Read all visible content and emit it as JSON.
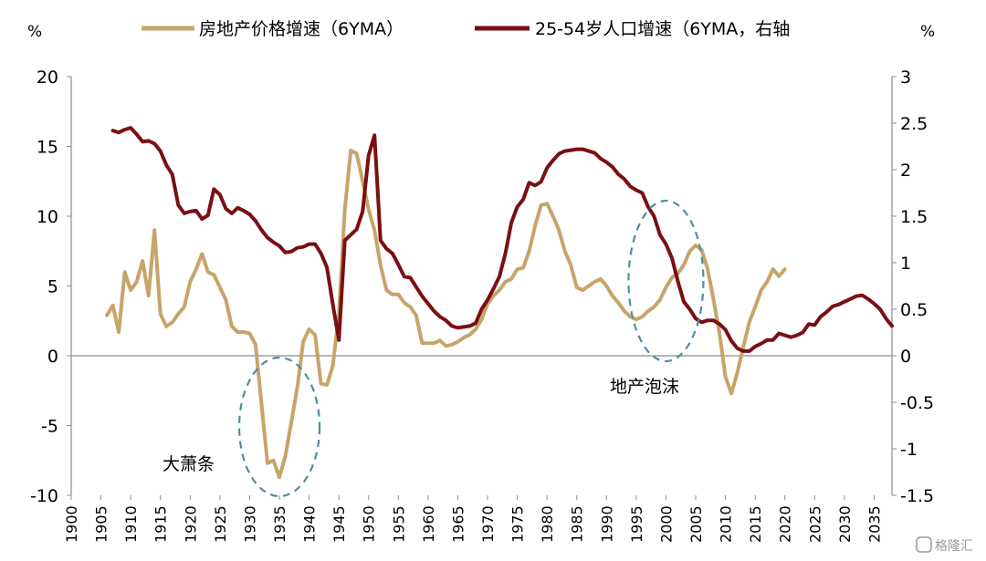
{
  "chart_data": {
    "type": "line",
    "left_unit": "%",
    "right_unit": "%",
    "x_ticks": [
      1900,
      1905,
      1910,
      1915,
      1920,
      1925,
      1930,
      1935,
      1940,
      1945,
      1950,
      1955,
      1960,
      1965,
      1970,
      1975,
      1980,
      1985,
      1990,
      1995,
      2000,
      2005,
      2010,
      2015,
      2020,
      2025,
      2030,
      2035
    ],
    "xlim": [
      1900,
      2038
    ],
    "ylim_left": [
      -10,
      20
    ],
    "ylim_right": [
      -1.5,
      3
    ],
    "y_ticks_left": [
      -10,
      -5,
      0,
      5,
      10,
      15,
      20
    ],
    "y_ticks_right": [
      -1.5,
      -1,
      -0.5,
      0,
      0.5,
      1,
      1.5,
      2,
      2.5,
      3
    ],
    "grid": false,
    "legend_position": "top",
    "series": [
      {
        "name": "房地产价格增速（6YMA）",
        "color": "#C8A46A",
        "axis": "left",
        "points": [
          [
            1906,
            2.9
          ],
          [
            1907,
            3.6
          ],
          [
            1908,
            1.7
          ],
          [
            1909,
            6.0
          ],
          [
            1910,
            4.7
          ],
          [
            1911,
            5.3
          ],
          [
            1912,
            6.8
          ],
          [
            1913,
            4.3
          ],
          [
            1914,
            9.0
          ],
          [
            1915,
            3.0
          ],
          [
            1916,
            2.1
          ],
          [
            1917,
            2.4
          ],
          [
            1918,
            3.0
          ],
          [
            1919,
            3.5
          ],
          [
            1920,
            5.3
          ],
          [
            1921,
            6.2
          ],
          [
            1922,
            7.3
          ],
          [
            1923,
            6.0
          ],
          [
            1924,
            5.8
          ],
          [
            1925,
            4.9
          ],
          [
            1926,
            4.0
          ],
          [
            1927,
            2.1
          ],
          [
            1928,
            1.7
          ],
          [
            1929,
            1.7
          ],
          [
            1930,
            1.6
          ],
          [
            1931,
            0.8
          ],
          [
            1932,
            -3.5
          ],
          [
            1933,
            -7.7
          ],
          [
            1934,
            -7.5
          ],
          [
            1935,
            -8.7
          ],
          [
            1936,
            -7.2
          ],
          [
            1937,
            -4.8
          ],
          [
            1938,
            -2.3
          ],
          [
            1939,
            1.0
          ],
          [
            1940,
            1.9
          ],
          [
            1941,
            1.5
          ],
          [
            1942,
            -2.0
          ],
          [
            1943,
            -2.1
          ],
          [
            1944,
            -0.7
          ],
          [
            1945,
            3.0
          ],
          [
            1946,
            10.5
          ],
          [
            1947,
            14.7
          ],
          [
            1948,
            14.5
          ],
          [
            1949,
            12.5
          ],
          [
            1950,
            10.5
          ],
          [
            1951,
            9.0
          ],
          [
            1952,
            6.5
          ],
          [
            1953,
            4.7
          ],
          [
            1954,
            4.4
          ],
          [
            1955,
            4.4
          ],
          [
            1956,
            3.8
          ],
          [
            1957,
            3.5
          ],
          [
            1958,
            2.9
          ],
          [
            1959,
            0.9
          ],
          [
            1960,
            0.9
          ],
          [
            1961,
            0.9
          ],
          [
            1962,
            1.1
          ],
          [
            1963,
            0.7
          ],
          [
            1964,
            0.8
          ],
          [
            1965,
            1.0
          ],
          [
            1966,
            1.3
          ],
          [
            1967,
            1.5
          ],
          [
            1968,
            1.9
          ],
          [
            1969,
            2.6
          ],
          [
            1970,
            3.7
          ],
          [
            1971,
            4.3
          ],
          [
            1972,
            4.7
          ],
          [
            1973,
            5.3
          ],
          [
            1974,
            5.5
          ],
          [
            1975,
            6.2
          ],
          [
            1976,
            6.3
          ],
          [
            1977,
            7.5
          ],
          [
            1978,
            9.3
          ],
          [
            1979,
            10.8
          ],
          [
            1980,
            10.9
          ],
          [
            1981,
            10.0
          ],
          [
            1982,
            9.0
          ],
          [
            1983,
            7.5
          ],
          [
            1984,
            6.5
          ],
          [
            1985,
            4.9
          ],
          [
            1986,
            4.7
          ],
          [
            1987,
            5.0
          ],
          [
            1988,
            5.3
          ],
          [
            1989,
            5.5
          ],
          [
            1990,
            5.0
          ],
          [
            1991,
            4.3
          ],
          [
            1992,
            3.8
          ],
          [
            1993,
            3.2
          ],
          [
            1994,
            2.8
          ],
          [
            1995,
            2.6
          ],
          [
            1996,
            2.8
          ],
          [
            1997,
            3.2
          ],
          [
            1998,
            3.5
          ],
          [
            1999,
            4.0
          ],
          [
            2000,
            4.9
          ],
          [
            2001,
            5.6
          ],
          [
            2002,
            5.9
          ],
          [
            2003,
            6.5
          ],
          [
            2004,
            7.5
          ],
          [
            2005,
            7.9
          ],
          [
            2006,
            7.6
          ],
          [
            2007,
            6.2
          ],
          [
            2008,
            4.0
          ],
          [
            2009,
            1.6
          ],
          [
            2010,
            -1.5
          ],
          [
            2011,
            -2.7
          ],
          [
            2012,
            -1.2
          ],
          [
            2013,
            0.6
          ],
          [
            2014,
            2.4
          ],
          [
            2015,
            3.5
          ],
          [
            2016,
            4.7
          ],
          [
            2017,
            5.3
          ],
          [
            2018,
            6.2
          ],
          [
            2019,
            5.7
          ],
          [
            2020,
            6.2
          ]
        ]
      },
      {
        "name": "25-54岁人口增速（6YMA，右轴",
        "color": "#7A0F12",
        "axis": "right",
        "points": [
          [
            1907,
            2.42
          ],
          [
            1908,
            2.4
          ],
          [
            1909,
            2.43
          ],
          [
            1910,
            2.45
          ],
          [
            1911,
            2.38
          ],
          [
            1912,
            2.3
          ],
          [
            1913,
            2.31
          ],
          [
            1914,
            2.28
          ],
          [
            1915,
            2.2
          ],
          [
            1916,
            2.05
          ],
          [
            1917,
            1.95
          ],
          [
            1918,
            1.62
          ],
          [
            1919,
            1.53
          ],
          [
            1920,
            1.55
          ],
          [
            1921,
            1.56
          ],
          [
            1922,
            1.47
          ],
          [
            1923,
            1.51
          ],
          [
            1924,
            1.79
          ],
          [
            1925,
            1.73
          ],
          [
            1926,
            1.58
          ],
          [
            1927,
            1.53
          ],
          [
            1928,
            1.59
          ],
          [
            1929,
            1.56
          ],
          [
            1930,
            1.52
          ],
          [
            1931,
            1.45
          ],
          [
            1932,
            1.35
          ],
          [
            1933,
            1.27
          ],
          [
            1934,
            1.22
          ],
          [
            1935,
            1.18
          ],
          [
            1936,
            1.11
          ],
          [
            1937,
            1.12
          ],
          [
            1938,
            1.16
          ],
          [
            1939,
            1.17
          ],
          [
            1940,
            1.2
          ],
          [
            1941,
            1.2
          ],
          [
            1942,
            1.1
          ],
          [
            1943,
            0.95
          ],
          [
            1944,
            0.55
          ],
          [
            1945,
            0.17
          ],
          [
            1946,
            1.24
          ],
          [
            1947,
            1.3
          ],
          [
            1948,
            1.36
          ],
          [
            1949,
            1.55
          ],
          [
            1950,
            2.15
          ],
          [
            1951,
            2.37
          ],
          [
            1952,
            1.24
          ],
          [
            1953,
            1.15
          ],
          [
            1954,
            1.1
          ],
          [
            1955,
            0.98
          ],
          [
            1956,
            0.85
          ],
          [
            1957,
            0.84
          ],
          [
            1958,
            0.74
          ],
          [
            1959,
            0.64
          ],
          [
            1960,
            0.56
          ],
          [
            1961,
            0.48
          ],
          [
            1962,
            0.42
          ],
          [
            1963,
            0.38
          ],
          [
            1964,
            0.32
          ],
          [
            1965,
            0.3
          ],
          [
            1966,
            0.31
          ],
          [
            1967,
            0.32
          ],
          [
            1968,
            0.35
          ],
          [
            1969,
            0.5
          ],
          [
            1970,
            0.6
          ],
          [
            1971,
            0.72
          ],
          [
            1972,
            0.85
          ],
          [
            1973,
            1.1
          ],
          [
            1974,
            1.43
          ],
          [
            1975,
            1.6
          ],
          [
            1976,
            1.68
          ],
          [
            1977,
            1.86
          ],
          [
            1978,
            1.83
          ],
          [
            1979,
            1.87
          ],
          [
            1980,
            2.02
          ],
          [
            1981,
            2.1
          ],
          [
            1982,
            2.17
          ],
          [
            1983,
            2.2
          ],
          [
            1984,
            2.21
          ],
          [
            1985,
            2.22
          ],
          [
            1986,
            2.22
          ],
          [
            1987,
            2.2
          ],
          [
            1988,
            2.18
          ],
          [
            1989,
            2.12
          ],
          [
            1990,
            2.08
          ],
          [
            1991,
            2.03
          ],
          [
            1992,
            1.95
          ],
          [
            1993,
            1.9
          ],
          [
            1994,
            1.82
          ],
          [
            1995,
            1.78
          ],
          [
            1996,
            1.75
          ],
          [
            1997,
            1.6
          ],
          [
            1998,
            1.5
          ],
          [
            1999,
            1.3
          ],
          [
            2000,
            1.2
          ],
          [
            2001,
            1.05
          ],
          [
            2002,
            0.8
          ],
          [
            2003,
            0.58
          ],
          [
            2004,
            0.5
          ],
          [
            2005,
            0.4
          ],
          [
            2006,
            0.36
          ],
          [
            2007,
            0.38
          ],
          [
            2008,
            0.38
          ],
          [
            2009,
            0.34
          ],
          [
            2010,
            0.28
          ],
          [
            2011,
            0.16
          ],
          [
            2012,
            0.08
          ],
          [
            2013,
            0.05
          ],
          [
            2014,
            0.05
          ],
          [
            2015,
            0.1
          ],
          [
            2016,
            0.13
          ],
          [
            2017,
            0.17
          ],
          [
            2018,
            0.17
          ],
          [
            2019,
            0.24
          ],
          [
            2020,
            0.22
          ],
          [
            2021,
            0.2
          ],
          [
            2022,
            0.22
          ],
          [
            2023,
            0.25
          ],
          [
            2024,
            0.34
          ],
          [
            2025,
            0.33
          ],
          [
            2026,
            0.42
          ],
          [
            2027,
            0.47
          ],
          [
            2028,
            0.53
          ],
          [
            2029,
            0.55
          ],
          [
            2030,
            0.58
          ],
          [
            2031,
            0.61
          ],
          [
            2032,
            0.64
          ],
          [
            2033,
            0.65
          ],
          [
            2034,
            0.61
          ],
          [
            2035,
            0.56
          ],
          [
            2036,
            0.5
          ],
          [
            2037,
            0.4
          ],
          [
            2038,
            0.32
          ]
        ]
      }
    ],
    "annotations": [
      {
        "text": "大萧条",
        "x": 1935,
        "y": -5.5,
        "axis": "left",
        "ellipse": true
      },
      {
        "text": "地产泡沫",
        "x": 2000,
        "y": 5.2,
        "axis": "left",
        "ellipse": true
      }
    ]
  },
  "watermark": "格隆汇"
}
